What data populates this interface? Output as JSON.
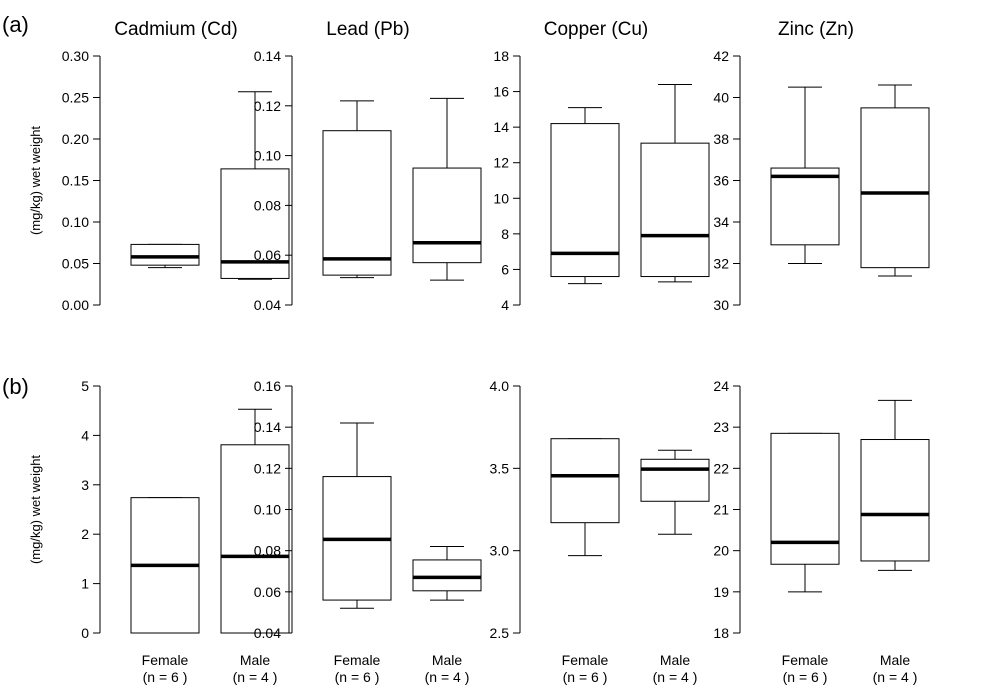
{
  "figure": {
    "row_labels": [
      "(a)",
      "(b)"
    ],
    "ylabel": "(mg/kg) wet weight",
    "groups": [
      {
        "line1": "Female",
        "line2": "(n = 6 )"
      },
      {
        "line1": "Male",
        "line2": "(n = 4 )"
      }
    ]
  },
  "chart_data": [
    {
      "type": "box",
      "row": "(a)",
      "title": "Cadmium (Cd)",
      "ylabel": "(mg/kg) wet weight",
      "ylim": [
        0,
        0.3
      ],
      "yticks": [
        "0.00",
        "0.05",
        "0.10",
        "0.15",
        "0.20",
        "0.25",
        "0.30"
      ],
      "categories": [
        "Female (n = 6 )",
        "Male (n = 4 )"
      ],
      "boxes": [
        {
          "group": "Female",
          "whisker_low": 0.045,
          "q1": 0.048,
          "median": 0.058,
          "q3": 0.073,
          "whisker_high": 0.073
        },
        {
          "group": "Male",
          "whisker_low": 0.031,
          "q1": 0.032,
          "median": 0.052,
          "q3": 0.164,
          "whisker_high": 0.257
        }
      ]
    },
    {
      "type": "box",
      "row": "(a)",
      "title": "Lead (Pb)",
      "ylabel": "",
      "ylim": [
        0.04,
        0.14
      ],
      "yticks": [
        "0.04",
        "0.06",
        "0.08",
        "0.10",
        "0.12",
        "0.14"
      ],
      "categories": [
        "Female (n = 6 )",
        "Male (n = 4 )"
      ],
      "boxes": [
        {
          "group": "Female",
          "whisker_low": 0.051,
          "q1": 0.052,
          "median": 0.0585,
          "q3": 0.11,
          "whisker_high": 0.122
        },
        {
          "group": "Male",
          "whisker_low": 0.05,
          "q1": 0.057,
          "median": 0.065,
          "q3": 0.095,
          "whisker_high": 0.123
        }
      ]
    },
    {
      "type": "box",
      "row": "(a)",
      "title": "Copper (Cu)",
      "ylabel": "",
      "ylim": [
        4,
        18
      ],
      "yticks": [
        "4",
        "6",
        "8",
        "10",
        "12",
        "14",
        "16",
        "18"
      ],
      "categories": [
        "Female (n = 6 )",
        "Male (n = 4 )"
      ],
      "boxes": [
        {
          "group": "Female",
          "whisker_low": 5.2,
          "q1": 5.6,
          "median": 6.9,
          "q3": 14.2,
          "whisker_high": 15.1
        },
        {
          "group": "Male",
          "whisker_low": 5.3,
          "q1": 5.6,
          "median": 7.9,
          "q3": 13.1,
          "whisker_high": 16.4
        }
      ]
    },
    {
      "type": "box",
      "row": "(a)",
      "title": "Zinc (Zn)",
      "ylabel": "",
      "ylim": [
        30,
        42
      ],
      "yticks": [
        "30",
        "32",
        "34",
        "36",
        "38",
        "40",
        "42"
      ],
      "categories": [
        "Female (n = 6 )",
        "Male (n = 4 )"
      ],
      "boxes": [
        {
          "group": "Female",
          "whisker_low": 32.0,
          "q1": 32.9,
          "median": 36.2,
          "q3": 36.6,
          "whisker_high": 40.5
        },
        {
          "group": "Male",
          "whisker_low": 31.4,
          "q1": 31.8,
          "median": 35.4,
          "q3": 39.5,
          "whisker_high": 40.6
        }
      ]
    },
    {
      "type": "box",
      "row": "(b)",
      "title": "",
      "ylabel": "(mg/kg) wet weight",
      "ylim": [
        0,
        5
      ],
      "yticks": [
        "0",
        "1",
        "2",
        "3",
        "4",
        "5"
      ],
      "categories": [
        "Female (n = 6 )",
        "Male (n = 4 )"
      ],
      "boxes": [
        {
          "group": "Female",
          "whisker_low": 0.0,
          "q1": 0.0,
          "median": 1.37,
          "q3": 2.74,
          "whisker_high": 2.74
        },
        {
          "group": "Male",
          "whisker_low": 0.0,
          "q1": 0.0,
          "median": 1.55,
          "q3": 3.81,
          "whisker_high": 4.53
        }
      ]
    },
    {
      "type": "box",
      "row": "(b)",
      "title": "",
      "ylabel": "",
      "ylim": [
        0.04,
        0.16
      ],
      "yticks": [
        "0.04",
        "0.06",
        "0.08",
        "0.10",
        "0.12",
        "0.14",
        "0.16"
      ],
      "categories": [
        "Female (n = 6 )",
        "Male (n = 4 )"
      ],
      "boxes": [
        {
          "group": "Female",
          "whisker_low": 0.052,
          "q1": 0.056,
          "median": 0.0855,
          "q3": 0.116,
          "whisker_high": 0.142
        },
        {
          "group": "Male",
          "whisker_low": 0.056,
          "q1": 0.0605,
          "median": 0.067,
          "q3": 0.0755,
          "whisker_high": 0.082
        }
      ]
    },
    {
      "type": "box",
      "row": "(b)",
      "title": "",
      "ylabel": "",
      "ylim": [
        2.5,
        4.0
      ],
      "yticks": [
        "2.5",
        "3.0",
        "3.5",
        "4.0"
      ],
      "categories": [
        "Female (n = 6 )",
        "Male (n = 4 )"
      ],
      "boxes": [
        {
          "group": "Female",
          "whisker_low": 2.97,
          "q1": 3.17,
          "median": 3.455,
          "q3": 3.68,
          "whisker_high": 3.68
        },
        {
          "group": "Male",
          "whisker_low": 3.1,
          "q1": 3.3,
          "median": 3.495,
          "q3": 3.555,
          "whisker_high": 3.61
        }
      ]
    },
    {
      "type": "box",
      "row": "(b)",
      "title": "",
      "ylabel": "",
      "ylim": [
        18,
        24
      ],
      "yticks": [
        "18",
        "19",
        "20",
        "21",
        "22",
        "23",
        "24"
      ],
      "categories": [
        "Female (n = 6 )",
        "Male (n = 4 )"
      ],
      "boxes": [
        {
          "group": "Female",
          "whisker_low": 19.0,
          "q1": 19.67,
          "median": 20.2,
          "q3": 22.85,
          "whisker_high": 22.85
        },
        {
          "group": "Male",
          "whisker_low": 19.52,
          "q1": 19.75,
          "median": 20.88,
          "q3": 22.7,
          "whisker_high": 23.65
        }
      ]
    }
  ]
}
